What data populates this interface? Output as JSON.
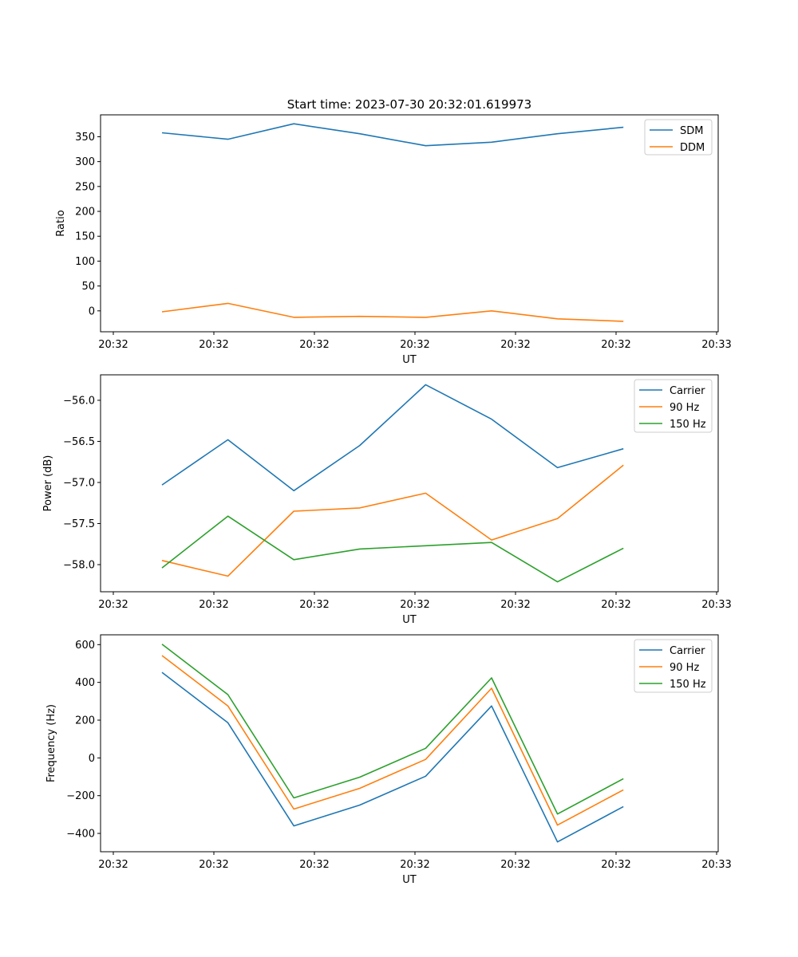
{
  "figure": {
    "title": "Start time: 2023-07-30 20:32:01.619973"
  },
  "chart_data": [
    {
      "type": "line",
      "title": "Start time: 2023-07-30 20:32:01.619973",
      "xlabel": "UT",
      "ylabel": "Ratio",
      "x_tick_labels": [
        "20:32",
        "20:32",
        "20:32",
        "20:32",
        "20:32",
        "20:32",
        "20:33"
      ],
      "y_ticks": [
        0,
        50,
        100,
        150,
        200,
        250,
        300,
        350
      ],
      "y_tick_labels": [
        "0",
        "50",
        "100",
        "150",
        "200",
        "250",
        "300",
        "350"
      ],
      "ylim": [
        -42,
        394
      ],
      "x_index": [
        0,
        1,
        2,
        3,
        4,
        5,
        6,
        7
      ],
      "legend_position": "top-right",
      "grid": false,
      "series": [
        {
          "name": "SDM",
          "color": "#1f77b4",
          "values": [
            358,
            345,
            376,
            356,
            332,
            339,
            356,
            369
          ]
        },
        {
          "name": "DDM",
          "color": "#ff7f0e",
          "values": [
            -2,
            15,
            -13,
            -11,
            -13,
            0,
            -16,
            -21
          ]
        }
      ]
    },
    {
      "type": "line",
      "title": "",
      "xlabel": "UT",
      "ylabel": "Power (dB)",
      "x_tick_labels": [
        "20:32",
        "20:32",
        "20:32",
        "20:32",
        "20:32",
        "20:32",
        "20:33"
      ],
      "y_ticks": [
        -58.0,
        -57.5,
        -57.0,
        -56.5,
        -56.0
      ],
      "y_tick_labels": [
        "−58.0",
        "−57.5",
        "−57.0",
        "−56.5",
        "−56.0"
      ],
      "ylim": [
        -58.33,
        -55.69
      ],
      "x_index": [
        0,
        1,
        2,
        3,
        4,
        5,
        6,
        7
      ],
      "legend_position": "top-right",
      "grid": false,
      "series": [
        {
          "name": "Carrier",
          "color": "#1f77b4",
          "values": [
            -57.03,
            -56.48,
            -57.1,
            -56.55,
            -55.81,
            -56.23,
            -56.82,
            -56.59
          ]
        },
        {
          "name": "90 Hz",
          "color": "#ff7f0e",
          "values": [
            -57.95,
            -58.14,
            -57.35,
            -57.31,
            -57.13,
            -57.7,
            -57.44,
            -56.79
          ]
        },
        {
          "name": "150 Hz",
          "color": "#2ca02c",
          "values": [
            -58.04,
            -57.41,
            -57.94,
            -57.81,
            -57.77,
            -57.73,
            -58.21,
            -57.8
          ]
        }
      ]
    },
    {
      "type": "line",
      "title": "",
      "xlabel": "UT",
      "ylabel": "Frequency (Hz)",
      "x_tick_labels": [
        "20:32",
        "20:32",
        "20:32",
        "20:32",
        "20:32",
        "20:32",
        "20:33"
      ],
      "y_ticks": [
        -400,
        -200,
        0,
        200,
        400,
        600
      ],
      "y_tick_labels": [
        "−400",
        "−200",
        "0",
        "200",
        "400",
        "600"
      ],
      "ylim": [
        -497,
        652
      ],
      "x_index": [
        0,
        1,
        2,
        3,
        4,
        5,
        6,
        7
      ],
      "legend_position": "top-right",
      "grid": false,
      "series": [
        {
          "name": "Carrier",
          "color": "#1f77b4",
          "values": [
            453,
            186,
            -360,
            -250,
            -97,
            275,
            -445,
            -258
          ]
        },
        {
          "name": "90 Hz",
          "color": "#ff7f0e",
          "values": [
            542,
            275,
            -271,
            -161,
            -8,
            369,
            -356,
            -169
          ]
        },
        {
          "name": "150 Hz",
          "color": "#2ca02c",
          "values": [
            602,
            335,
            -212,
            -102,
            51,
            424,
            -297,
            -110
          ]
        }
      ]
    }
  ]
}
